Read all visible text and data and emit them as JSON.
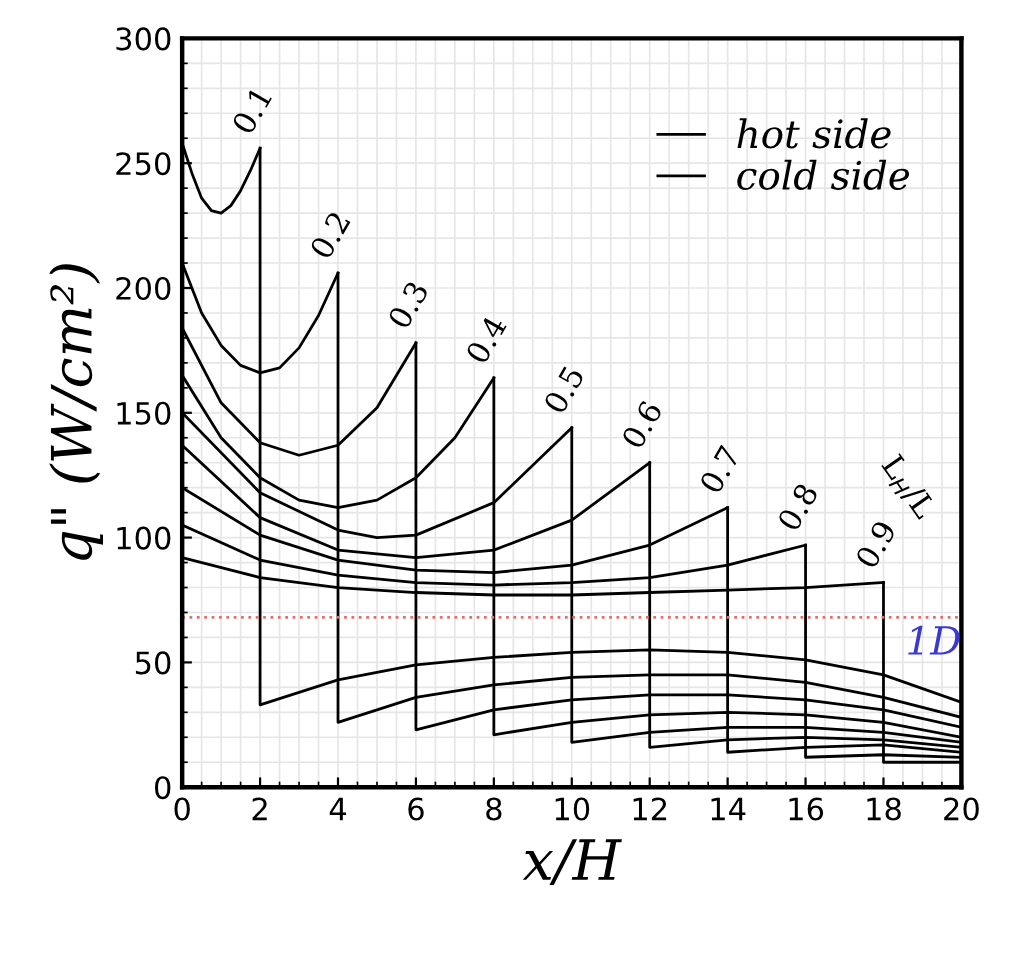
{
  "chart_data": {
    "type": "line",
    "xlabel": "x/H",
    "ylabel": "q\" (W/cm²)",
    "xlim": [
      0,
      20
    ],
    "ylim": [
      0,
      300
    ],
    "xticks": [
      0,
      2,
      4,
      6,
      8,
      10,
      12,
      14,
      16,
      18,
      20
    ],
    "yticks": [
      0,
      50,
      100,
      150,
      200,
      250,
      300
    ],
    "grid": true,
    "legend": "top right",
    "line_style": "solid",
    "series": [
      {
        "name": "hot side",
        "color": "#000000",
        "x": [
          0,
          0.25,
          0.5,
          0.75,
          1,
          1.25,
          1.5,
          1.75,
          2
        ],
        "values": [
          258,
          246,
          236,
          231,
          230,
          233,
          239,
          247,
          256
        ]
      },
      {
        "color": "#000000",
        "x": [
          0,
          0.5,
          1,
          1.5,
          2,
          2.5,
          3,
          3.5,
          4
        ],
        "values": [
          210,
          190,
          177,
          169,
          166,
          168,
          176,
          189,
          206
        ]
      },
      {
        "color": "#000000",
        "x": [
          0,
          1,
          2,
          3,
          4,
          5,
          6
        ],
        "values": [
          184,
          154,
          138,
          133,
          137,
          152,
          178
        ]
      },
      {
        "color": "#000000",
        "x": [
          0,
          1,
          2,
          3,
          4,
          5,
          6,
          7,
          8
        ],
        "values": [
          165,
          140,
          124,
          115,
          112,
          115,
          124,
          140,
          164
        ]
      },
      {
        "color": "#000000",
        "x": [
          0,
          2,
          4,
          5,
          6,
          8,
          10
        ],
        "values": [
          150,
          118,
          103,
          100,
          101,
          114,
          144
        ]
      },
      {
        "color": "#000000",
        "x": [
          0,
          2,
          4,
          6,
          8,
          10,
          12
        ],
        "values": [
          137,
          108,
          95,
          92,
          95,
          107,
          130
        ]
      },
      {
        "color": "#000000",
        "x": [
          0,
          2,
          4,
          6,
          8,
          10,
          12,
          14
        ],
        "values": [
          120,
          101,
          91,
          87,
          86,
          89,
          97,
          112
        ]
      },
      {
        "color": "#000000",
        "x": [
          0,
          2,
          4,
          6,
          8,
          10,
          12,
          14,
          16
        ],
        "values": [
          105,
          91,
          85,
          82,
          81,
          82,
          84,
          89,
          97
        ]
      },
      {
        "color": "#000000",
        "x": [
          0,
          2,
          4,
          6,
          8,
          10,
          12,
          14,
          16,
          18
        ],
        "values": [
          92,
          84,
          80,
          78,
          77,
          77,
          78,
          79,
          80,
          82
        ]
      },
      {
        "name": "cold side",
        "color": "#000000",
        "x": [
          2,
          2,
          4,
          6,
          8,
          10,
          12,
          14,
          16,
          18,
          20
        ],
        "values": [
          256,
          33,
          43,
          49,
          52,
          54,
          55,
          54,
          51,
          45,
          34
        ]
      },
      {
        "color": "#000000",
        "x": [
          4,
          4,
          6,
          8,
          10,
          12,
          14,
          16,
          18,
          20
        ],
        "values": [
          206,
          26,
          36,
          41,
          44,
          45,
          45,
          42,
          36,
          28
        ]
      },
      {
        "color": "#000000",
        "x": [
          6,
          6,
          8,
          10,
          12,
          14,
          16,
          18,
          20
        ],
        "values": [
          178,
          23,
          31,
          35,
          37,
          37,
          35,
          31,
          24
        ]
      },
      {
        "color": "#000000",
        "x": [
          8,
          8,
          10,
          12,
          14,
          16,
          18,
          20
        ],
        "values": [
          164,
          21,
          26,
          29,
          30,
          29,
          26,
          20
        ]
      },
      {
        "color": "#000000",
        "x": [
          10,
          10,
          12,
          14,
          16,
          18,
          20
        ],
        "values": [
          144,
          18,
          22,
          24,
          24,
          22,
          18
        ]
      },
      {
        "color": "#000000",
        "x": [
          12,
          12,
          14,
          16,
          18,
          20
        ],
        "values": [
          130,
          16,
          19,
          20,
          19,
          16
        ]
      },
      {
        "color": "#000000",
        "x": [
          14,
          14,
          16,
          18,
          20
        ],
        "values": [
          112,
          14,
          16,
          17,
          14
        ]
      },
      {
        "color": "#000000",
        "x": [
          16,
          16,
          18,
          20
        ],
        "values": [
          97,
          12,
          13,
          12
        ]
      },
      {
        "color": "#000000",
        "x": [
          18,
          18,
          20
        ],
        "values": [
          82,
          10,
          10
        ]
      }
    ],
    "ref_lines": [
      {
        "axis": "y",
        "value": 68,
        "label": "1D",
        "color": "#e07070",
        "line_style": "dotted"
      }
    ],
    "annotations": [
      {
        "text": "0.1",
        "x": 2,
        "y": 256
      },
      {
        "text": "0.2",
        "x": 4,
        "y": 206
      },
      {
        "text": "0.3",
        "x": 6,
        "y": 178
      },
      {
        "text": "0.4",
        "x": 8,
        "y": 164
      },
      {
        "text": "0.5",
        "x": 10,
        "y": 144
      },
      {
        "text": "0.6",
        "x": 12,
        "y": 130
      },
      {
        "text": "0.7",
        "x": 14,
        "y": 112
      },
      {
        "text": "0.8",
        "x": 16,
        "y": 97
      },
      {
        "text": "0.9",
        "x": 18,
        "y": 82
      },
      "L$_{H}$/L"
    ]
  }
}
